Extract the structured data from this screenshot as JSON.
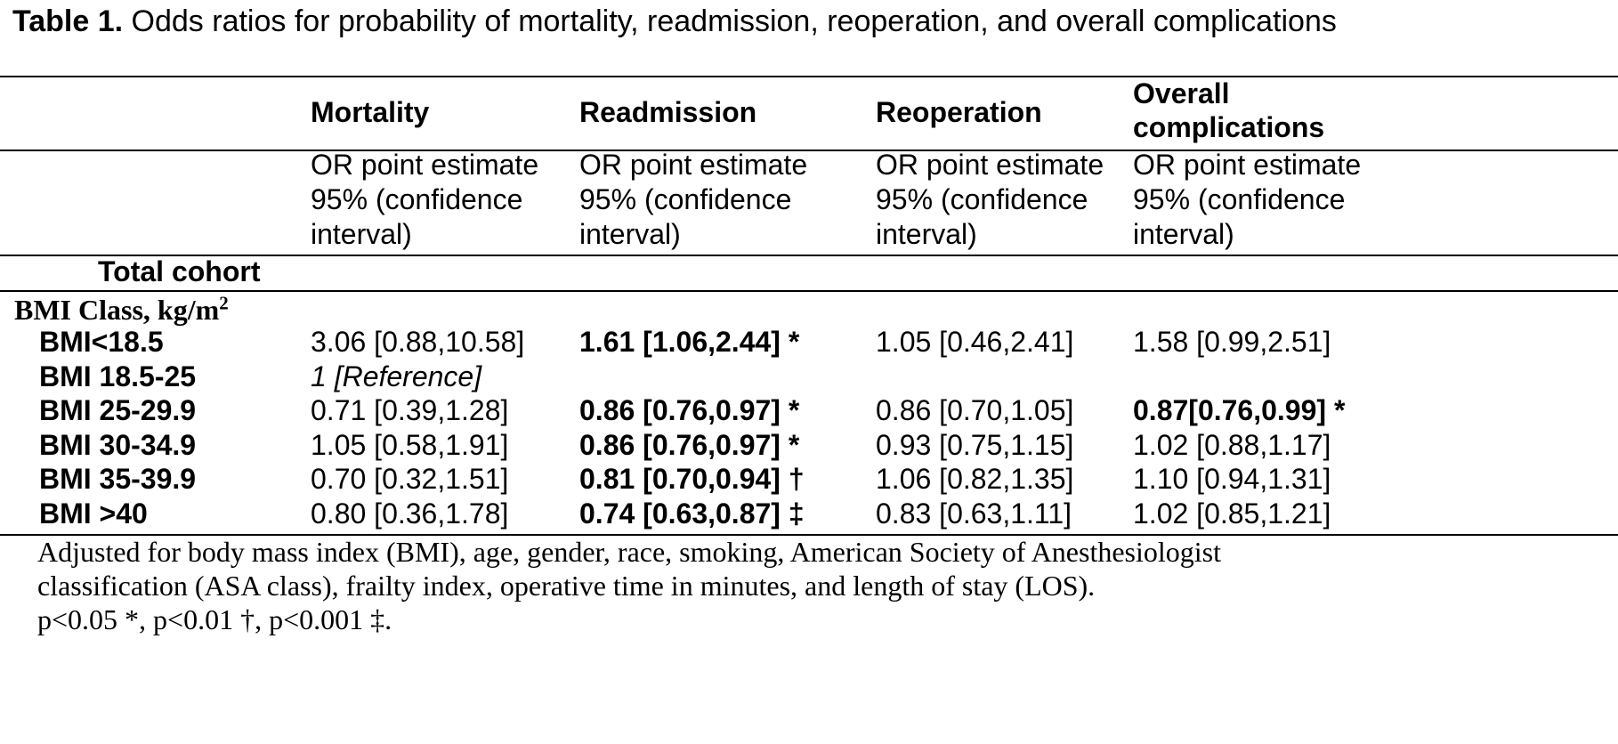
{
  "caption": {
    "label": "Table 1.",
    "text": "Odds ratios for probability of mortality, readmission, reoperation, and overall complications"
  },
  "columns": [
    {
      "header_lines": [
        "Mortality"
      ],
      "subheader_lines": [
        "OR point estimate",
        "95% (confidence",
        "interval)"
      ]
    },
    {
      "header_lines": [
        "Readmission"
      ],
      "subheader_lines": [
        "OR point estimate",
        "95% (confidence",
        "interval)"
      ]
    },
    {
      "header_lines": [
        "Reoperation"
      ],
      "subheader_lines": [
        "OR point estimate",
        "95% (confidence",
        "interval)"
      ]
    },
    {
      "header_lines": [
        "Overall",
        "complications"
      ],
      "subheader_lines": [
        "OR point estimate",
        "95% (confidence",
        "interval)"
      ]
    }
  ],
  "section_label": "Total cohort",
  "group_label": "BMI Class, kg/m",
  "group_label_sup": "2",
  "rows": [
    {
      "label": "BMI<18.5",
      "cells": [
        {
          "text": "3.06 [0.88,10.58]",
          "style": "normal"
        },
        {
          "text": "1.61 [1.06,2.44] *",
          "style": "bold"
        },
        {
          "text": "1.05 [0.46,2.41]",
          "style": "normal"
        },
        {
          "text": "1.58 [0.99,2.51]",
          "style": "normal"
        }
      ]
    },
    {
      "label": "BMI 18.5-25",
      "cells": [
        {
          "text": "1 [Reference]",
          "style": "italic"
        },
        {
          "text": "",
          "style": "normal"
        },
        {
          "text": "",
          "style": "normal"
        },
        {
          "text": "",
          "style": "normal"
        }
      ]
    },
    {
      "label": "BMI 25-29.9",
      "cells": [
        {
          "text": "0.71 [0.39,1.28]",
          "style": "normal"
        },
        {
          "text": "0.86 [0.76,0.97] *",
          "style": "bold"
        },
        {
          "text": "0.86 [0.70,1.05]",
          "style": "normal"
        },
        {
          "text": "0.87[0.76,0.99] *",
          "style": "bold"
        }
      ]
    },
    {
      "label": "BMI 30-34.9",
      "cells": [
        {
          "text": "1.05 [0.58,1.91]",
          "style": "normal"
        },
        {
          "text": "0.86 [0.76,0.97] *",
          "style": "bold"
        },
        {
          "text": "0.93 [0.75,1.15]",
          "style": "normal"
        },
        {
          "text": "1.02 [0.88,1.17]",
          "style": "normal"
        }
      ]
    },
    {
      "label": "BMI 35-39.9",
      "cells": [
        {
          "text": "0.70 [0.32,1.51]",
          "style": "normal"
        },
        {
          "text": "0.81 [0.70,0.94] †",
          "style": "bold"
        },
        {
          "text": "1.06 [0.82,1.35]",
          "style": "normal"
        },
        {
          "text": "1.10 [0.94,1.31]",
          "style": "normal"
        }
      ]
    },
    {
      "label": "BMI >40",
      "cells": [
        {
          "text": "0.80 [0.36,1.78]",
          "style": "normal"
        },
        {
          "text": "0.74 [0.63,0.87] ‡",
          "style": "bold"
        },
        {
          "text": "0.83 [0.63,1.11]",
          "style": "normal"
        },
        {
          "text": "1.02 [0.85,1.21]",
          "style": "normal"
        }
      ]
    }
  ],
  "footnotes": [
    "Adjusted for body mass index (BMI), age, gender, race, smoking, American Society of Anesthesiologist",
    "classification (ASA class), frailty index, operative time in minutes, and length of stay (LOS).",
    "p<0.05 *, p<0.01 †, p<0.001 ‡."
  ]
}
